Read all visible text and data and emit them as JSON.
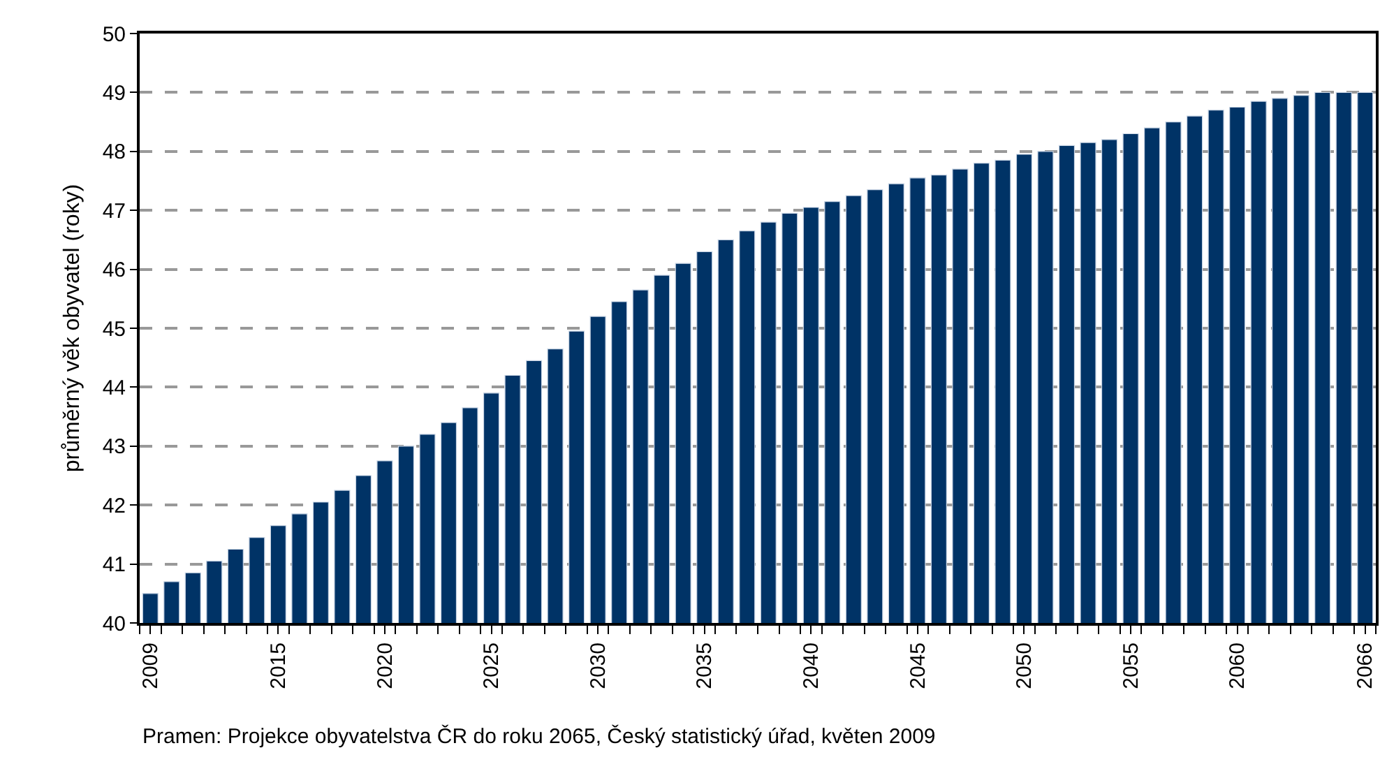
{
  "chart_data": {
    "type": "bar",
    "ylabel": "průměrný věk obyvatel (roky)",
    "categories": [
      "2009",
      null,
      null,
      null,
      null,
      null,
      "2015",
      null,
      null,
      null,
      null,
      "2020",
      null,
      null,
      null,
      null,
      "2025",
      null,
      null,
      null,
      null,
      "2030",
      null,
      null,
      null,
      null,
      "2035",
      null,
      null,
      null,
      null,
      "2040",
      null,
      null,
      null,
      null,
      "2045",
      null,
      null,
      null,
      null,
      "2050",
      null,
      null,
      null,
      null,
      "2055",
      null,
      null,
      null,
      null,
      "2060",
      null,
      null,
      null,
      null,
      null,
      "2066"
    ],
    "values": [
      40.5,
      40.7,
      40.85,
      41.05,
      41.25,
      41.45,
      41.65,
      41.85,
      42.05,
      42.25,
      42.5,
      42.75,
      43.0,
      43.2,
      43.4,
      43.65,
      43.9,
      44.2,
      44.45,
      44.65,
      44.95,
      45.2,
      45.45,
      45.65,
      45.9,
      46.1,
      46.3,
      46.5,
      46.65,
      46.8,
      46.95,
      47.05,
      47.15,
      47.25,
      47.35,
      47.45,
      47.55,
      47.6,
      47.7,
      47.8,
      47.85,
      47.95,
      48.0,
      48.1,
      48.15,
      48.2,
      48.3,
      48.4,
      48.5,
      48.6,
      48.7,
      48.75,
      48.85,
      48.9,
      48.95,
      49.0,
      49.0,
      49.0
    ],
    "color": "#003366",
    "ylim": [
      40,
      50
    ],
    "yticks": [
      40,
      41,
      42,
      43,
      44,
      45,
      46,
      47,
      48,
      49,
      50
    ],
    "grid": "y",
    "line_style": "dashed",
    "annotations": [
      "Pramen: Projekce obyvatelstva ČR do roku 2065, Český statistický úřad, květen 2009"
    ]
  }
}
